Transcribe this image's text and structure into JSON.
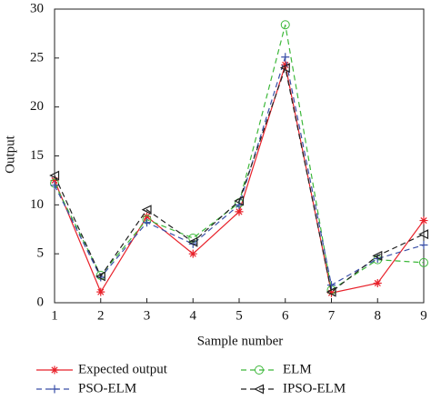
{
  "chart_data": {
    "type": "line",
    "x_label": "Sample number",
    "y_label": "Output",
    "x": [
      1,
      2,
      3,
      4,
      5,
      6,
      7,
      8,
      9
    ],
    "xlim": [
      1,
      9
    ],
    "xticks": [
      1,
      2,
      3,
      4,
      5,
      6,
      7,
      8,
      9
    ],
    "ylim": [
      0,
      30
    ],
    "yticks": [
      0,
      5,
      10,
      15,
      20,
      25,
      30
    ],
    "series": [
      {
        "name": "Expected output",
        "color": "#e8212a",
        "linestyle": "solid",
        "marker": "asterisk",
        "values": [
          12.5,
          1.1,
          8.8,
          5.0,
          9.3,
          24.3,
          1.0,
          2.0,
          8.4
        ]
      },
      {
        "name": "ELM",
        "color": "#3db83a",
        "linestyle": "dashed",
        "marker": "circle",
        "values": [
          12.2,
          2.8,
          8.5,
          6.6,
          10.2,
          28.4,
          1.3,
          4.4,
          4.1
        ]
      },
      {
        "name": "PSO-ELM",
        "color": "#3a4fa8",
        "linestyle": "dashed",
        "marker": "plus",
        "values": [
          12.0,
          2.6,
          8.2,
          6.0,
          10.0,
          25.1,
          1.8,
          4.5,
          5.9
        ]
      },
      {
        "name": "IPSO-ELM",
        "color": "#222222",
        "linestyle": "dashed",
        "marker": "triangle-left",
        "values": [
          13.0,
          2.7,
          9.5,
          6.2,
          10.4,
          24.0,
          1.1,
          4.8,
          7.0
        ]
      }
    ]
  }
}
